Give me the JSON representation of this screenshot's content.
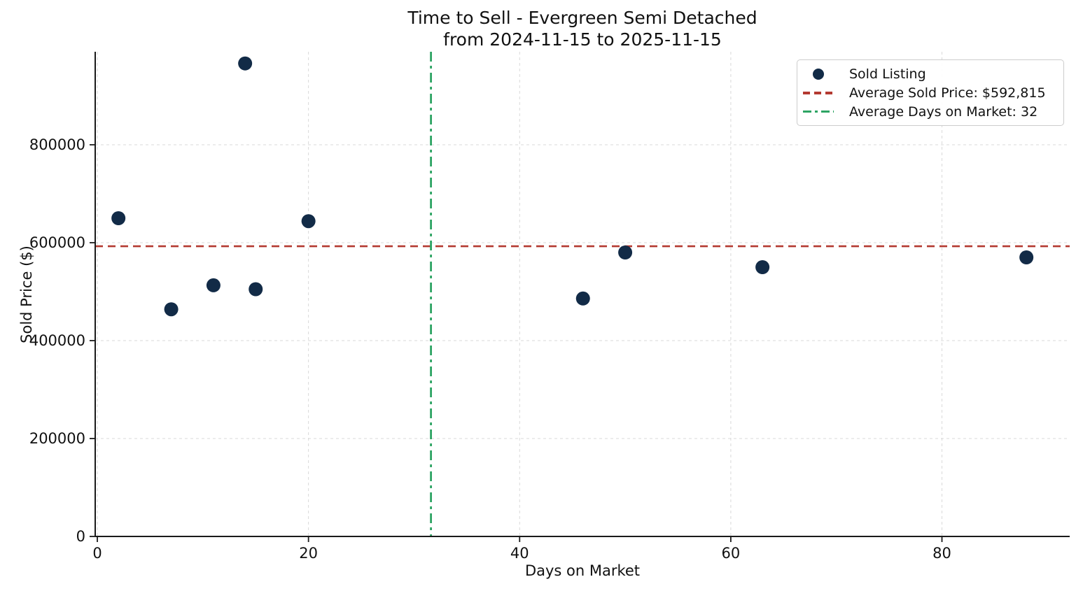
{
  "figure": {
    "title_line1": "Time to Sell - Evergreen Semi Detached",
    "title_line2": "from 2024-11-15 to 2025-11-15"
  },
  "axes": {
    "xlabel": "Days on Market",
    "ylabel": "Sold Price ($)"
  },
  "legend": {
    "items": [
      {
        "label": "Sold Listing",
        "marker": "circle-icon"
      },
      {
        "label": "Average Sold Price: $592,815",
        "marker": "dashed-line-icon"
      },
      {
        "label": "Average Days on Market: 32",
        "marker": "dashdot-line-icon"
      }
    ]
  },
  "colors": {
    "point": "#122b47",
    "avg_price_line": "#b43a31",
    "avg_days_line": "#2da463",
    "grid": "#d9d9d9",
    "spine": "#1a1a1a",
    "tick_label": "#111111"
  },
  "chart_data": {
    "type": "scatter",
    "title": "Time to Sell - Evergreen Semi Detached from 2024-11-15 to 2025-11-15",
    "xlabel": "Days on Market",
    "ylabel": "Sold Price ($)",
    "series": [
      {
        "name": "Sold Listing",
        "points": [
          {
            "days_on_market": 2,
            "sold_price": 650000
          },
          {
            "days_on_market": 7,
            "sold_price": 464000
          },
          {
            "days_on_market": 11,
            "sold_price": 513000
          },
          {
            "days_on_market": 14,
            "sold_price": 966150
          },
          {
            "days_on_market": 15,
            "sold_price": 505000
          },
          {
            "days_on_market": 20,
            "sold_price": 644000
          },
          {
            "days_on_market": 46,
            "sold_price": 486000
          },
          {
            "days_on_market": 50,
            "sold_price": 580000
          },
          {
            "days_on_market": 63,
            "sold_price": 550000
          },
          {
            "days_on_market": 88,
            "sold_price": 570000
          }
        ]
      }
    ],
    "reference_lines": {
      "average_sold_price": {
        "value": 592815,
        "label": "Average Sold Price: $592,815",
        "style": "dashed"
      },
      "average_days_on_market": {
        "value": 31.6,
        "value_displayed": "32",
        "label": "Average Days on Market: 32",
        "style": "dashdot"
      }
    },
    "x_ticks": [
      0,
      20,
      40,
      60,
      80
    ],
    "y_ticks": [
      0,
      200000,
      400000,
      600000,
      800000
    ],
    "x_tick_labels": [
      "0",
      "20",
      "40",
      "60",
      "80"
    ],
    "y_tick_labels": [
      "0",
      "200000",
      "400000",
      "600000",
      "800000"
    ],
    "xlim": [
      -0.2,
      92.1
    ],
    "ylim": [
      0,
      990000
    ],
    "grid": true,
    "grid_style": "dashed",
    "legend_position": "upper right"
  }
}
